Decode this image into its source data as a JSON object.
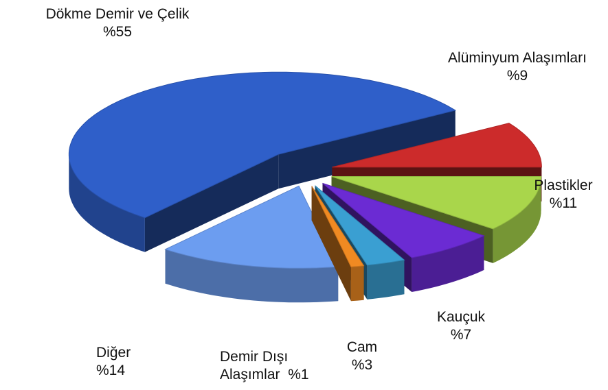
{
  "chart_data": {
    "type": "pie3d",
    "categories": [
      "Alüminyum Alaşımları",
      "Plastikler",
      "Kauçuk",
      "Cam",
      "Demir Dışı Alaşımlar",
      "Diğer",
      "Dökme Demir ve Çelik"
    ],
    "values": [
      9,
      11,
      7,
      3,
      1,
      14,
      55
    ],
    "value_labels": [
      "%9",
      "%11",
      "%7",
      "%3",
      "%1",
      "%14",
      "%55"
    ],
    "colors": [
      "#cc2b2b",
      "#a9d64b",
      "#6b2bd3",
      "#3a9fd2",
      "#f08a22",
      "#6c9df0",
      "#2f5fc9"
    ]
  }
}
